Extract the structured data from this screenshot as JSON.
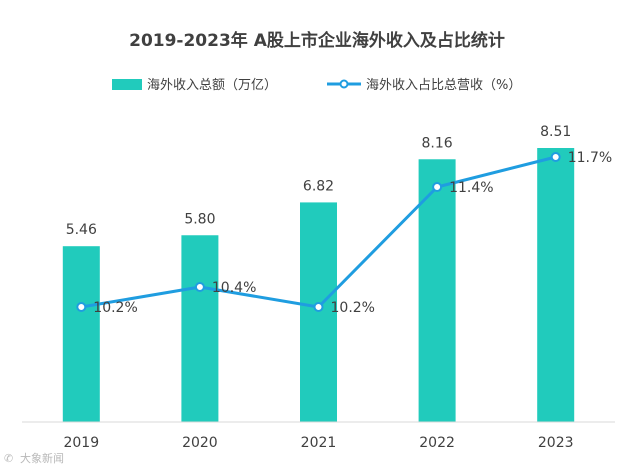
{
  "chart_data": {
    "type": "bar+line",
    "title": "2019-2023年 A股上市企业海外收入及占比统计",
    "categories": [
      "2019",
      "2020",
      "2021",
      "2022",
      "2023"
    ],
    "series": [
      {
        "name": "海外收入总额（万亿）",
        "type": "bar",
        "values": [
          5.46,
          5.8,
          6.82,
          8.16,
          8.51
        ],
        "labels": [
          "5.46",
          "5.80",
          "6.82",
          "8.16",
          "8.51"
        ],
        "color": "#21cbbc"
      },
      {
        "name": "海外收入占比总营收（%）",
        "type": "line",
        "values": [
          10.2,
          10.4,
          10.2,
          11.4,
          11.7
        ],
        "labels": [
          "10.2%",
          "10.4%",
          "10.2%",
          "11.4%",
          "11.7%"
        ],
        "color": "#1f9de0"
      }
    ],
    "bar_axis_range": [
      0,
      9
    ],
    "line_axis_range": [
      8.5,
      12.0
    ],
    "legend_position": "top-center",
    "grid": false
  },
  "watermark": "大象新闻"
}
